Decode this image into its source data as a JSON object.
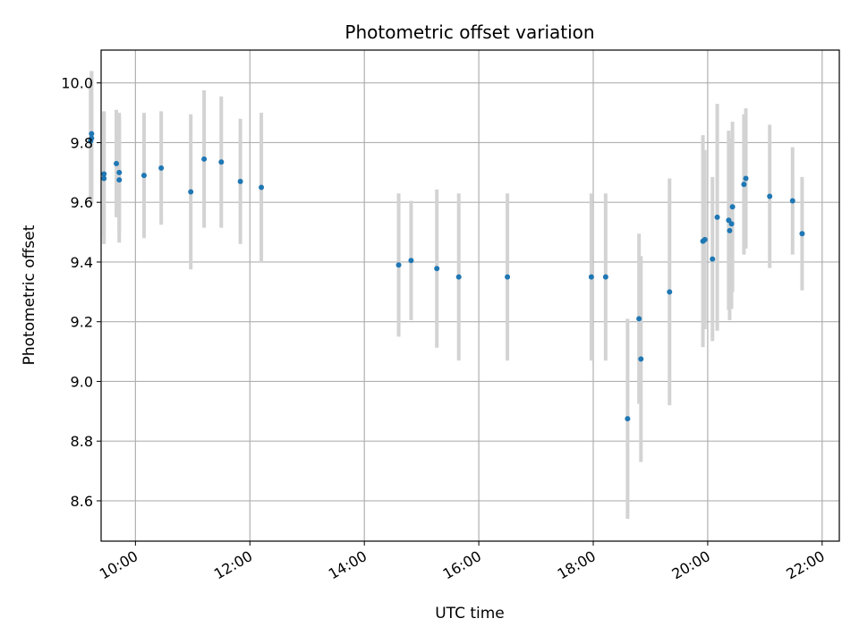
{
  "chart_data": {
    "type": "scatter",
    "title": "Photometric offset variation",
    "xlabel": "UTC time",
    "ylabel": "Photometric offset",
    "x_unit": "hours UTC",
    "xlim": [
      "09:24",
      "22:18"
    ],
    "ylim": [
      8.465,
      10.11
    ],
    "xticks": [
      "10:00",
      "12:00",
      "14:00",
      "16:00",
      "18:00",
      "20:00",
      "22:00"
    ],
    "yticks": [
      "8.6",
      "8.8",
      "9.0",
      "9.2",
      "9.4",
      "9.6",
      "9.8",
      "10.0"
    ],
    "grid": true,
    "point_color": "#1f77b4",
    "errorbar_color": "#d3d3d3",
    "points": [
      {
        "x": "09:13",
        "y": 9.805,
        "err": 0.2
      },
      {
        "x": "09:14",
        "y": 9.815,
        "err": 0.22
      },
      {
        "x": "09:14",
        "y": 9.83,
        "err": 0.21
      },
      {
        "x": "09:27",
        "y": 9.695,
        "err": 0.21
      },
      {
        "x": "09:27",
        "y": 9.68,
        "err": 0.22
      },
      {
        "x": "09:40",
        "y": 9.73,
        "err": 0.18
      },
      {
        "x": "09:43",
        "y": 9.7,
        "err": 0.2
      },
      {
        "x": "09:43",
        "y": 9.675,
        "err": 0.21
      },
      {
        "x": "10:09",
        "y": 9.69,
        "err": 0.21
      },
      {
        "x": "10:27",
        "y": 9.715,
        "err": 0.19
      },
      {
        "x": "10:58",
        "y": 9.635,
        "err": 0.26
      },
      {
        "x": "11:12",
        "y": 9.745,
        "err": 0.23
      },
      {
        "x": "11:30",
        "y": 9.735,
        "err": 0.22
      },
      {
        "x": "11:50",
        "y": 9.67,
        "err": 0.21
      },
      {
        "x": "12:12",
        "y": 9.65,
        "err": 0.25
      },
      {
        "x": "14:36",
        "y": 9.39,
        "err": 0.24
      },
      {
        "x": "14:49",
        "y": 9.405,
        "err": 0.2
      },
      {
        "x": "15:16",
        "y": 9.378,
        "err": 0.265
      },
      {
        "x": "15:39",
        "y": 9.35,
        "err": 0.28
      },
      {
        "x": "16:30",
        "y": 9.35,
        "err": 0.28
      },
      {
        "x": "17:58",
        "y": 9.35,
        "err": 0.28
      },
      {
        "x": "18:13",
        "y": 9.35,
        "err": 0.28
      },
      {
        "x": "18:36",
        "y": 8.875,
        "err": 0.335
      },
      {
        "x": "18:48",
        "y": 9.21,
        "err": 0.285
      },
      {
        "x": "18:50",
        "y": 9.075,
        "err": 0.345
      },
      {
        "x": "19:20",
        "y": 9.3,
        "err": 0.38
      },
      {
        "x": "19:55",
        "y": 9.47,
        "err": 0.355
      },
      {
        "x": "19:57",
        "y": 9.475,
        "err": 0.3
      },
      {
        "x": "20:05",
        "y": 9.41,
        "err": 0.275
      },
      {
        "x": "20:10",
        "y": 9.55,
        "err": 0.38
      },
      {
        "x": "20:22",
        "y": 9.54,
        "err": 0.3
      },
      {
        "x": "20:23",
        "y": 9.505,
        "err": 0.3
      },
      {
        "x": "20:25",
        "y": 9.528,
        "err": 0.285
      },
      {
        "x": "20:26",
        "y": 9.585,
        "err": 0.285
      },
      {
        "x": "20:38",
        "y": 9.66,
        "err": 0.235
      },
      {
        "x": "20:40",
        "y": 9.68,
        "err": 0.235
      },
      {
        "x": "21:05",
        "y": 9.62,
        "err": 0.24
      },
      {
        "x": "21:29",
        "y": 9.605,
        "err": 0.18
      },
      {
        "x": "21:39",
        "y": 9.495,
        "err": 0.19
      }
    ]
  }
}
